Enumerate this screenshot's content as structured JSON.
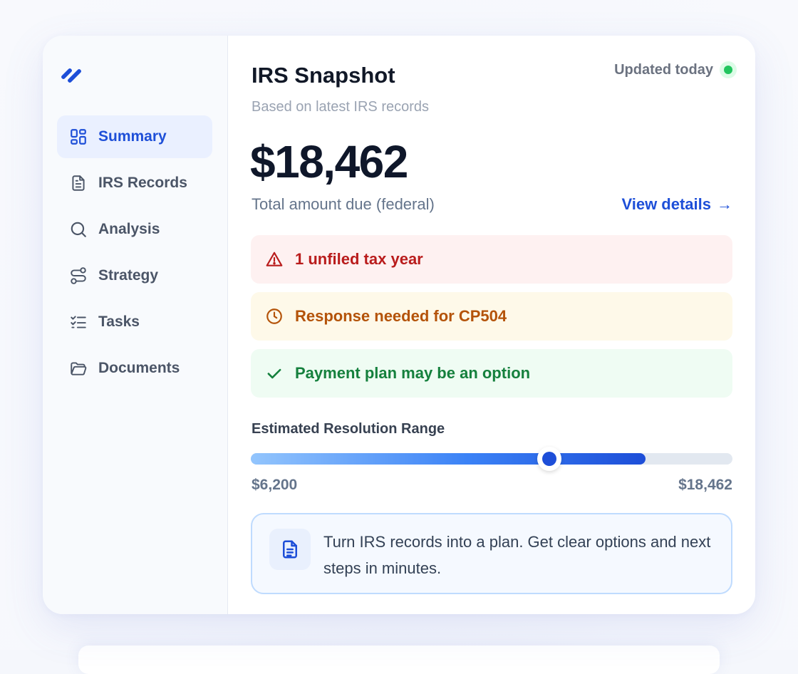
{
  "nav": {
    "items": [
      {
        "label": "Summary",
        "icon": "layout-grid-icon",
        "active": true
      },
      {
        "label": "IRS Records",
        "icon": "document-icon",
        "active": false
      },
      {
        "label": "Analysis",
        "icon": "search-icon",
        "active": false
      },
      {
        "label": "Strategy",
        "icon": "route-icon",
        "active": false
      },
      {
        "label": "Tasks",
        "icon": "checklist-icon",
        "active": false
      },
      {
        "label": "Documents",
        "icon": "folder-open-icon",
        "active": false
      }
    ]
  },
  "header": {
    "title": "IRS Snapshot",
    "subtitle": "Based on latest IRS records",
    "status": "Updated today"
  },
  "summary": {
    "amount": "$18,462",
    "amount_label": "Total amount due (federal)",
    "view_details": "View details",
    "view_details_arrow": "→"
  },
  "alerts": [
    {
      "text": "1 unfiled tax year",
      "icon": "warning-triangle-icon",
      "tone": "error"
    },
    {
      "text": "Response needed for CP504",
      "icon": "clock-icon",
      "tone": "warning"
    },
    {
      "text": "Payment plan may be an option",
      "icon": "check-icon",
      "tone": "success"
    }
  ],
  "range": {
    "title": "Estimated Resolution Range",
    "min_label": "$6,200",
    "max_label": "$18,462",
    "fill_fraction": 0.82,
    "thumb_fraction": 0.62
  },
  "info": {
    "text": "Turn IRS records into a plan. Get clear options and next steps in minutes.",
    "icon": "document-icon"
  },
  "colors": {
    "accent": "#1e4fd8",
    "success": "#22c55e",
    "error": "#b91c1c",
    "warning": "#b45309"
  }
}
